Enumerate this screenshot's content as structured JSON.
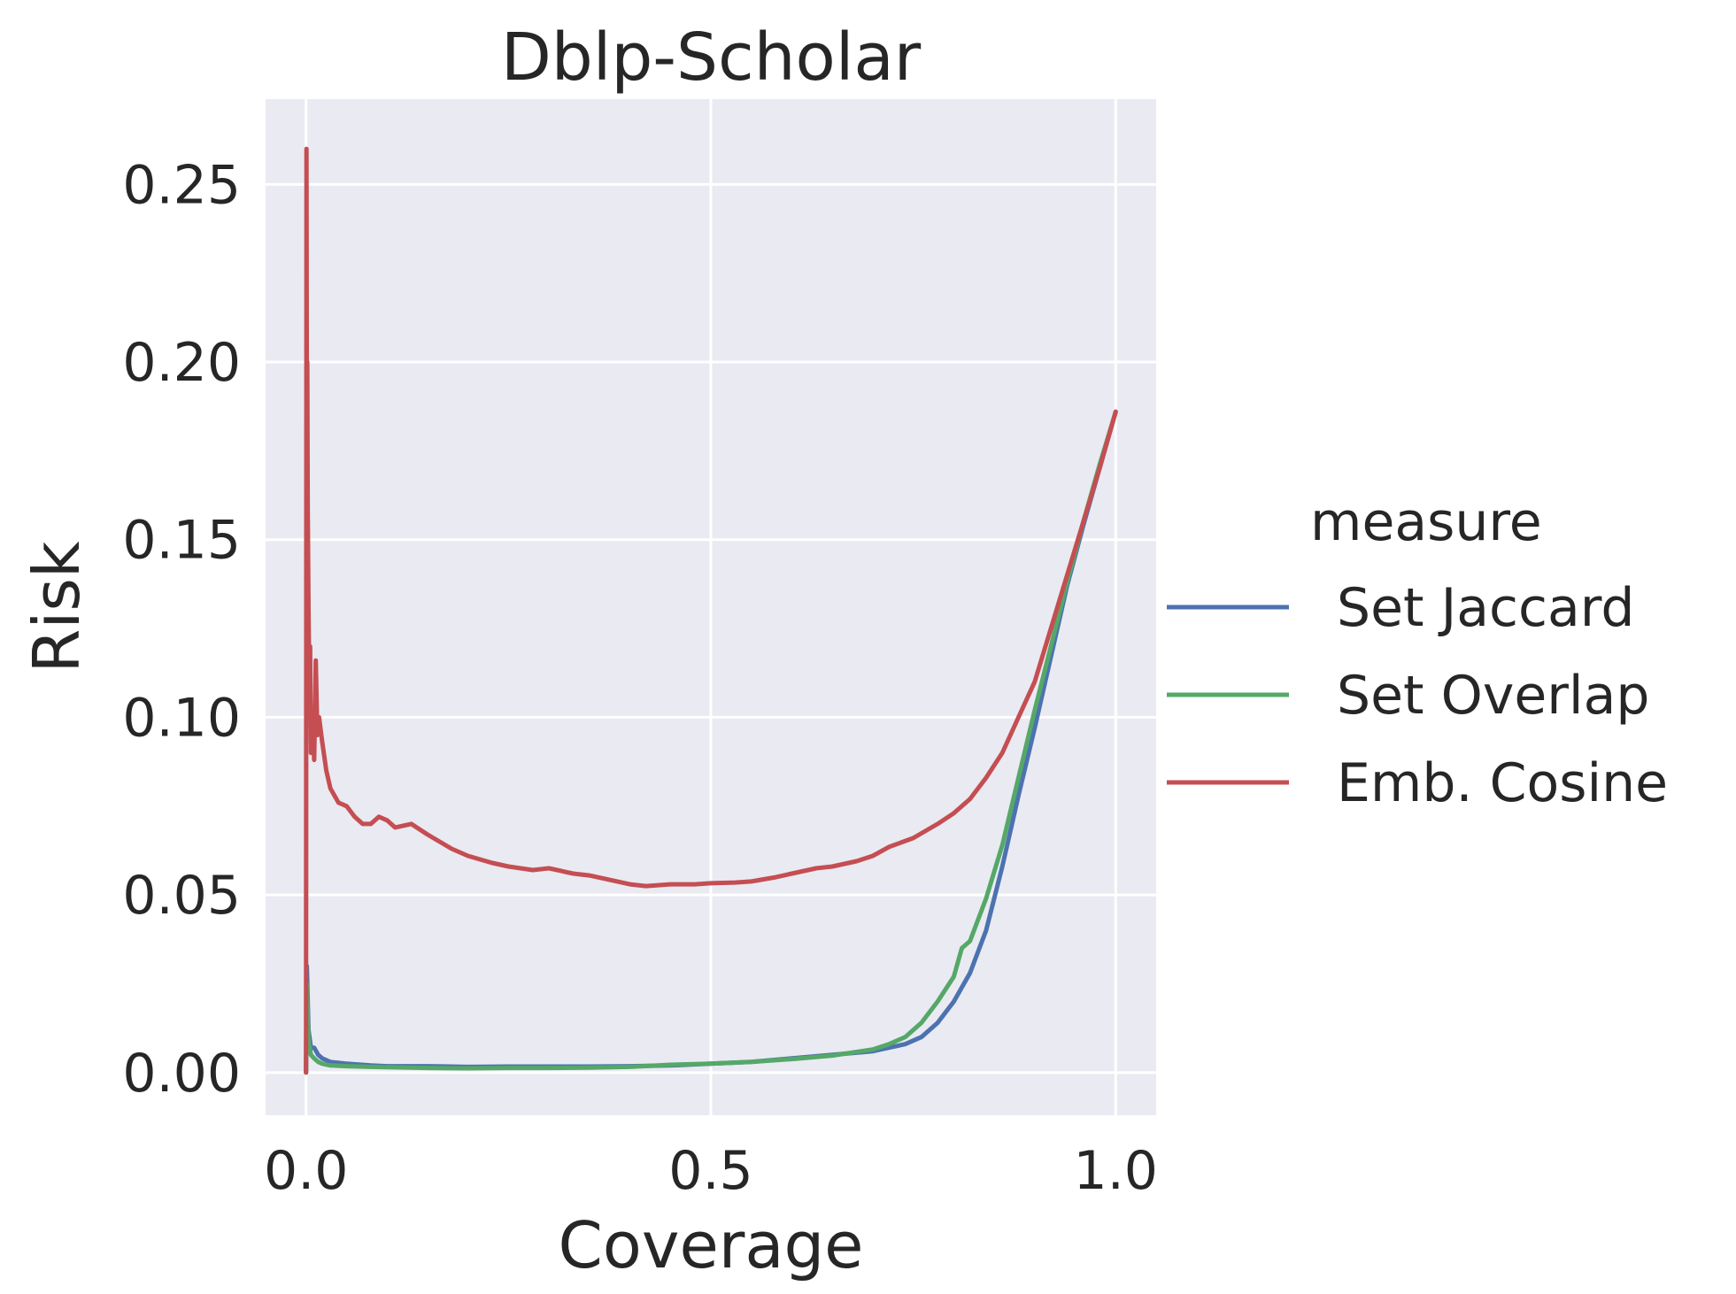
{
  "chart_data": {
    "type": "line",
    "title": "Dblp-Scholar",
    "xlabel": "Coverage",
    "ylabel": "Risk",
    "xlim": [
      -0.05,
      1.05
    ],
    "ylim": [
      -0.012,
      0.274
    ],
    "xticks": [
      {
        "value": 0.0,
        "label": "0.0"
      },
      {
        "value": 0.5,
        "label": "0.5"
      },
      {
        "value": 1.0,
        "label": "1.0"
      }
    ],
    "yticks": [
      {
        "value": 0.0,
        "label": "0.00"
      },
      {
        "value": 0.05,
        "label": "0.05"
      },
      {
        "value": 0.1,
        "label": "0.10"
      },
      {
        "value": 0.15,
        "label": "0.15"
      },
      {
        "value": 0.2,
        "label": "0.20"
      },
      {
        "value": 0.25,
        "label": "0.25"
      }
    ],
    "grid": true,
    "legend": {
      "title": "measure",
      "position": "right"
    },
    "series": [
      {
        "name": "Set Jaccard",
        "color": "#4c72b0",
        "points": [
          [
            0.0,
            0.0
          ],
          [
            0.001,
            0.03
          ],
          [
            0.003,
            0.012
          ],
          [
            0.006,
            0.007
          ],
          [
            0.01,
            0.007
          ],
          [
            0.015,
            0.005
          ],
          [
            0.02,
            0.004
          ],
          [
            0.03,
            0.003
          ],
          [
            0.05,
            0.0025
          ],
          [
            0.08,
            0.002
          ],
          [
            0.1,
            0.0018
          ],
          [
            0.15,
            0.0018
          ],
          [
            0.2,
            0.0016
          ],
          [
            0.25,
            0.0017
          ],
          [
            0.3,
            0.0017
          ],
          [
            0.35,
            0.0017
          ],
          [
            0.4,
            0.0018
          ],
          [
            0.45,
            0.002
          ],
          [
            0.5,
            0.0025
          ],
          [
            0.55,
            0.003
          ],
          [
            0.6,
            0.004
          ],
          [
            0.65,
            0.005
          ],
          [
            0.7,
            0.006
          ],
          [
            0.72,
            0.007
          ],
          [
            0.74,
            0.008
          ],
          [
            0.76,
            0.01
          ],
          [
            0.78,
            0.014
          ],
          [
            0.8,
            0.02
          ],
          [
            0.82,
            0.028
          ],
          [
            0.84,
            0.04
          ],
          [
            0.86,
            0.058
          ],
          [
            0.88,
            0.078
          ],
          [
            0.9,
            0.097
          ],
          [
            0.92,
            0.117
          ],
          [
            0.94,
            0.137
          ],
          [
            0.96,
            0.154
          ],
          [
            0.98,
            0.17
          ],
          [
            1.0,
            0.186
          ]
        ]
      },
      {
        "name": "Set Overlap",
        "color": "#55a868",
        "points": [
          [
            0.0,
            0.0
          ],
          [
            0.001,
            0.025
          ],
          [
            0.003,
            0.009
          ],
          [
            0.006,
            0.005
          ],
          [
            0.01,
            0.004
          ],
          [
            0.015,
            0.003
          ],
          [
            0.02,
            0.0025
          ],
          [
            0.03,
            0.002
          ],
          [
            0.05,
            0.0018
          ],
          [
            0.08,
            0.0016
          ],
          [
            0.1,
            0.0015
          ],
          [
            0.15,
            0.0013
          ],
          [
            0.2,
            0.0012
          ],
          [
            0.25,
            0.0013
          ],
          [
            0.3,
            0.0013
          ],
          [
            0.35,
            0.0014
          ],
          [
            0.4,
            0.0016
          ],
          [
            0.45,
            0.0022
          ],
          [
            0.5,
            0.0025
          ],
          [
            0.55,
            0.003
          ],
          [
            0.6,
            0.0038
          ],
          [
            0.65,
            0.0048
          ],
          [
            0.7,
            0.0065
          ],
          [
            0.72,
            0.008
          ],
          [
            0.74,
            0.01
          ],
          [
            0.76,
            0.014
          ],
          [
            0.78,
            0.02
          ],
          [
            0.8,
            0.027
          ],
          [
            0.81,
            0.035
          ],
          [
            0.82,
            0.037
          ],
          [
            0.84,
            0.049
          ],
          [
            0.86,
            0.064
          ],
          [
            0.88,
            0.083
          ],
          [
            0.9,
            0.102
          ],
          [
            0.92,
            0.12
          ],
          [
            0.94,
            0.138
          ],
          [
            0.96,
            0.155
          ],
          [
            0.98,
            0.171
          ],
          [
            1.0,
            0.186
          ]
        ]
      },
      {
        "name": "Emb. Cosine",
        "color": "#c44e52",
        "points": [
          [
            0.0,
            0.0
          ],
          [
            0.0005,
            0.26
          ],
          [
            0.001,
            0.19
          ],
          [
            0.0015,
            0.2
          ],
          [
            0.002,
            0.16
          ],
          [
            0.003,
            0.13
          ],
          [
            0.004,
            0.11
          ],
          [
            0.005,
            0.12
          ],
          [
            0.006,
            0.09
          ],
          [
            0.008,
            0.1
          ],
          [
            0.01,
            0.088
          ],
          [
            0.012,
            0.116
          ],
          [
            0.014,
            0.095
          ],
          [
            0.016,
            0.1
          ],
          [
            0.02,
            0.093
          ],
          [
            0.025,
            0.085
          ],
          [
            0.03,
            0.08
          ],
          [
            0.04,
            0.076
          ],
          [
            0.05,
            0.075
          ],
          [
            0.06,
            0.072
          ],
          [
            0.07,
            0.07
          ],
          [
            0.08,
            0.07
          ],
          [
            0.09,
            0.072
          ],
          [
            0.1,
            0.071
          ],
          [
            0.11,
            0.069
          ],
          [
            0.13,
            0.07
          ],
          [
            0.15,
            0.067
          ],
          [
            0.18,
            0.063
          ],
          [
            0.2,
            0.061
          ],
          [
            0.23,
            0.059
          ],
          [
            0.25,
            0.058
          ],
          [
            0.28,
            0.057
          ],
          [
            0.3,
            0.0575
          ],
          [
            0.33,
            0.056
          ],
          [
            0.35,
            0.0555
          ],
          [
            0.38,
            0.054
          ],
          [
            0.4,
            0.053
          ],
          [
            0.42,
            0.0525
          ],
          [
            0.45,
            0.053
          ],
          [
            0.48,
            0.053
          ],
          [
            0.5,
            0.0533
          ],
          [
            0.53,
            0.0535
          ],
          [
            0.55,
            0.0538
          ],
          [
            0.58,
            0.055
          ],
          [
            0.6,
            0.056
          ],
          [
            0.63,
            0.0575
          ],
          [
            0.65,
            0.058
          ],
          [
            0.68,
            0.0595
          ],
          [
            0.7,
            0.061
          ],
          [
            0.72,
            0.0635
          ],
          [
            0.75,
            0.066
          ],
          [
            0.78,
            0.07
          ],
          [
            0.8,
            0.073
          ],
          [
            0.82,
            0.077
          ],
          [
            0.84,
            0.083
          ],
          [
            0.86,
            0.09
          ],
          [
            0.88,
            0.1
          ],
          [
            0.9,
            0.11
          ],
          [
            0.92,
            0.125
          ],
          [
            0.94,
            0.14
          ],
          [
            0.96,
            0.155
          ],
          [
            0.98,
            0.17
          ],
          [
            1.0,
            0.186
          ]
        ]
      }
    ]
  }
}
